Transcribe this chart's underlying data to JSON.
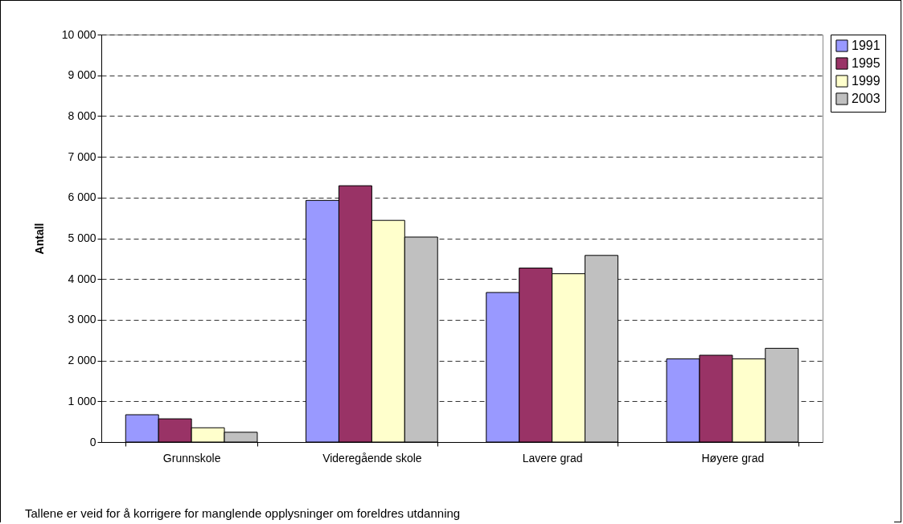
{
  "chart_data": {
    "type": "bar",
    "ylabel": "Antall",
    "categories": [
      "Grunnskole",
      "Videregående skole",
      "Lavere grad",
      "Høyere grad"
    ],
    "series": [
      {
        "name": "1991",
        "color": "#9999ff",
        "values": [
          670,
          5930,
          3670,
          2040
        ]
      },
      {
        "name": "1995",
        "color": "#993366",
        "values": [
          570,
          6290,
          4270,
          2130
        ]
      },
      {
        "name": "1999",
        "color": "#ffffcc",
        "values": [
          350,
          5440,
          4130,
          2040
        ]
      },
      {
        "name": "2003",
        "color": "#c0c0c0",
        "values": [
          240,
          5030,
          4580,
          2300
        ]
      }
    ],
    "ylim": [
      0,
      10000
    ],
    "yticks": [
      0,
      {
        "value": 1000,
        "label": "1 000"
      },
      {
        "value": 2000,
        "label": "2 000"
      },
      {
        "value": 3000,
        "label": "3 000"
      },
      {
        "value": 4000,
        "label": "4 000"
      },
      {
        "value": 5000,
        "label": "5 000"
      },
      {
        "value": 6000,
        "label": "6 000"
      },
      {
        "value": 7000,
        "label": "7 000"
      },
      {
        "value": 8000,
        "label": "8 000"
      },
      {
        "value": 9000,
        "label": "9 000"
      },
      {
        "value": 10000,
        "label": "10 000"
      }
    ],
    "grid": "y",
    "legend": "right",
    "annotations": [
      "Tallene er veid for å korrigere for manglende opplysninger om foreldres utdanning"
    ]
  }
}
